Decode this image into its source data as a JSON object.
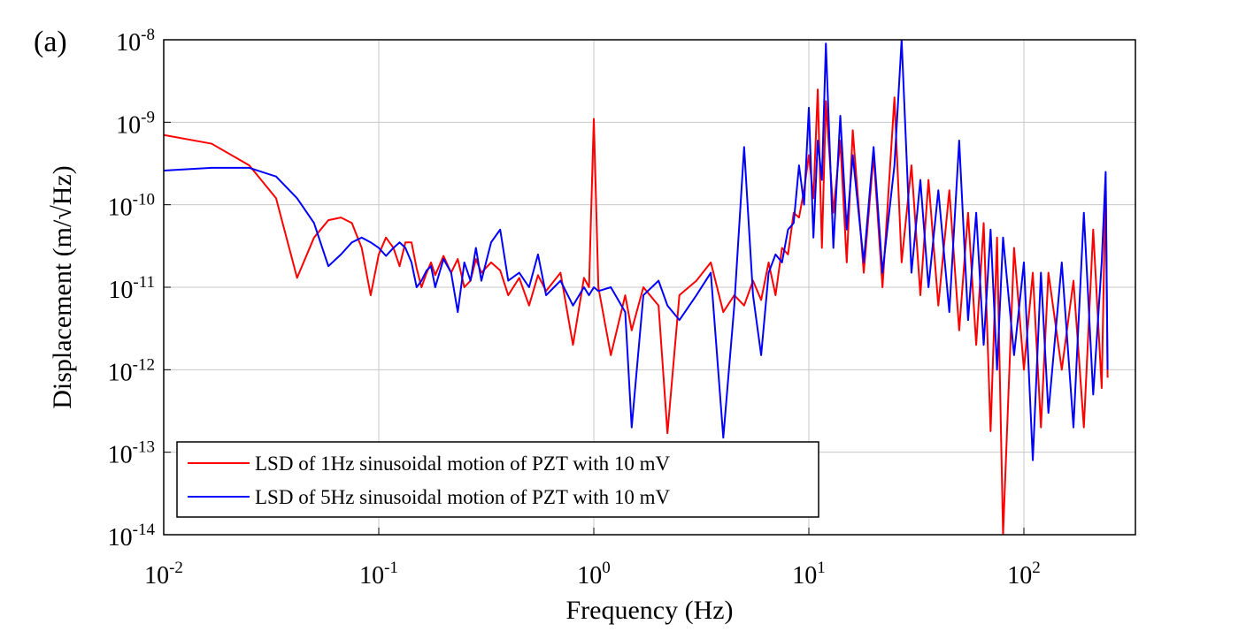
{
  "chart_data": {
    "type": "line",
    "panel_label": "(a)",
    "x_label": "Frequency (Hz)",
    "y_label": "Displacement (m/√Hz)",
    "log_x": true,
    "log_y": true,
    "grid": true,
    "legend_position": "lower-left",
    "xlim": [
      0.01,
      330
    ],
    "ylim": [
      1e-14,
      1e-08
    ],
    "xticks": [
      {
        "value": 0.01,
        "label": "10",
        "exponent": "-2"
      },
      {
        "value": 0.1,
        "label": "10",
        "exponent": "-1"
      },
      {
        "value": 1,
        "label": "10",
        "exponent": "0"
      },
      {
        "value": 10,
        "label": "10",
        "exponent": "1"
      },
      {
        "value": 100,
        "label": "10",
        "exponent": "2"
      }
    ],
    "yticks": [
      {
        "value": 1e-14,
        "label": "10",
        "exponent": "-14"
      },
      {
        "value": 1e-13,
        "label": "10",
        "exponent": "-13"
      },
      {
        "value": 1e-12,
        "label": "10",
        "exponent": "-12"
      },
      {
        "value": 1e-11,
        "label": "10",
        "exponent": "-11"
      },
      {
        "value": 1e-10,
        "label": "10",
        "exponent": "-10"
      },
      {
        "value": 1e-09,
        "label": "10",
        "exponent": "-9"
      },
      {
        "value": 1e-08,
        "label": "10",
        "exponent": "-8"
      }
    ],
    "x": [
      0.01,
      0.0167,
      0.025,
      0.0333,
      0.0417,
      0.05,
      0.0583,
      0.0667,
      0.075,
      0.0833,
      0.0917,
      0.1,
      0.108,
      0.117,
      0.125,
      0.133,
      0.142,
      0.15,
      0.158,
      0.167,
      0.175,
      0.183,
      0.2,
      0.217,
      0.233,
      0.25,
      0.267,
      0.283,
      0.3,
      0.333,
      0.367,
      0.4,
      0.45,
      0.5,
      0.55,
      0.6,
      0.7,
      0.8,
      0.9,
      0.95,
      1.0,
      1.05,
      1.2,
      1.4,
      1.5,
      1.7,
      2.0,
      2.2,
      2.5,
      3.0,
      3.5,
      4.0,
      4.5,
      5.0,
      5.5,
      6,
      6.5,
      7,
      7.5,
      8,
      8.5,
      9,
      9.5,
      10,
      10.5,
      11,
      11.5,
      12,
      13,
      14,
      15,
      16,
      18,
      20,
      22,
      25,
      27,
      30,
      33,
      36,
      40,
      45,
      50,
      55,
      60,
      65,
      70,
      75,
      80,
      90,
      100,
      110,
      120,
      130,
      150,
      170,
      190,
      210,
      230,
      240,
      245
    ],
    "series": [
      {
        "name": "LSD of 1Hz sinusoidal motion of PZT with 10 mV",
        "color": "#ff0000",
        "values": [
          7e-10,
          5.5e-10,
          3e-10,
          1.2e-10,
          1.3e-11,
          4e-11,
          6.5e-11,
          7e-11,
          6e-11,
          3e-11,
          8e-12,
          2.5e-11,
          4e-11,
          3e-11,
          1.8e-11,
          3.5e-11,
          3.5e-11,
          1.7e-11,
          1e-11,
          1.5e-11,
          2e-11,
          1.4e-11,
          2.4e-11,
          1.5e-11,
          2.2e-11,
          1e-11,
          1.2e-11,
          2.2e-11,
          1.5e-11,
          2e-11,
          1.6e-11,
          8e-12,
          1.3e-11,
          6e-12,
          1.4e-11,
          9e-12,
          1.5e-11,
          2e-12,
          1.3e-11,
          1e-11,
          1.1e-09,
          1e-11,
          1.5e-12,
          8e-12,
          3e-12,
          1e-11,
          6e-12,
          1.7e-13,
          8e-12,
          1.2e-11,
          2e-11,
          5e-12,
          8e-12,
          6e-12,
          1.2e-11,
          7e-12,
          2e-11,
          8e-12,
          3e-11,
          2.5e-11,
          8e-11,
          7e-11,
          1.5e-10,
          4e-10,
          1.2e-10,
          2.5e-09,
          3e-11,
          1.8e-09,
          8e-11,
          6e-10,
          2e-11,
          8e-10,
          1.5e-11,
          4e-10,
          1e-11,
          2e-09,
          2e-11,
          3e-10,
          8e-12,
          2e-10,
          6e-12,
          1.5e-10,
          3e-12,
          8e-11,
          2e-12,
          6e-11,
          1.8e-13,
          4e-11,
          1e-14,
          3e-11,
          1e-12,
          1.5e-11,
          2e-13,
          1.5e-11,
          1e-12,
          1.2e-11,
          2e-13,
          5e-11,
          6e-13,
          2e-10,
          8e-13
        ]
      },
      {
        "name": "LSD of 5Hz sinusoidal motion of PZT with 10 mV",
        "color": "#0000ff",
        "values": [
          2.6e-10,
          2.8e-10,
          2.8e-10,
          2.2e-10,
          1.2e-10,
          6e-11,
          1.8e-11,
          2.5e-11,
          3.5e-11,
          4e-11,
          3.5e-11,
          3e-11,
          2.4e-11,
          3e-11,
          3.5e-11,
          3e-11,
          2e-11,
          1e-11,
          1.2e-11,
          1.6e-11,
          1.8e-11,
          1e-11,
          2.2e-11,
          1.5e-11,
          5e-12,
          2e-11,
          1.2e-11,
          3e-11,
          1.2e-11,
          3.5e-11,
          5e-11,
          1.2e-11,
          1.5e-11,
          1e-11,
          2.5e-11,
          8e-12,
          1.2e-11,
          6e-12,
          1e-11,
          8e-12,
          1e-11,
          9e-12,
          1e-11,
          5e-12,
          2e-13,
          8e-12,
          1.2e-11,
          6e-12,
          4e-12,
          8e-12,
          1.5e-11,
          1.5e-13,
          6e-12,
          5e-10,
          8e-12,
          1.5e-12,
          1.5e-11,
          2.5e-11,
          2e-11,
          5e-11,
          6e-11,
          3e-10,
          1e-10,
          1.5e-09,
          4e-11,
          6e-10,
          2e-10,
          9e-09,
          3e-11,
          1.2e-09,
          5e-11,
          4e-10,
          2e-11,
          5e-10,
          1.5e-11,
          3e-10,
          1e-08,
          1.5e-11,
          2e-10,
          1e-11,
          1.5e-10,
          5e-12,
          6e-10,
          4e-12,
          8e-11,
          2e-12,
          5e-11,
          1e-12,
          4e-11,
          1.5e-12,
          2e-11,
          8e-14,
          1.5e-11,
          3e-13,
          2e-11,
          2e-13,
          8e-11,
          5e-13,
          2e-11,
          2.5e-10,
          1e-12
        ]
      }
    ]
  }
}
